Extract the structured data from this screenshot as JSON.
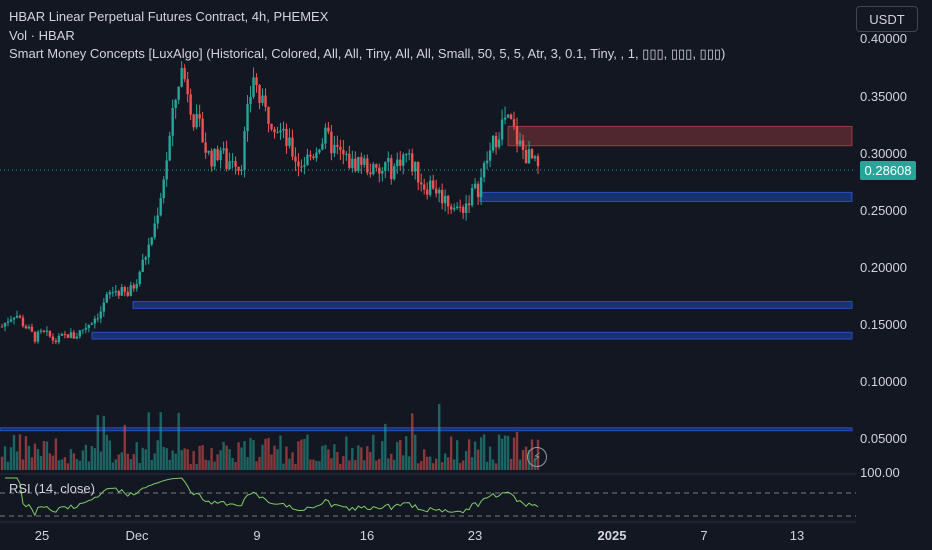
{
  "header": {
    "title": "HBAR Linear Perpetual Futures Contract, 4h, PHEMEX",
    "volume_label": "Vol · HBAR",
    "indicator_label": "Smart Money Concepts [LuxAlgo] (Historical, Colored, All, All, Tiny, All, All, Small, 50, 5, 5, Atr, 3, 0.1, Tiny, , 1, ▯▯▯, ▯▯▯, ▯▯▯)"
  },
  "currency_button": "USDT",
  "current_price": "0.28608",
  "rsi_label": "RSI (14, close)",
  "y_axis_labels": [
    "0.40000",
    "0.35000",
    "0.30000",
    "0.25000",
    "0.20000",
    "0.15000",
    "0.10000",
    "0.05000",
    "100.00"
  ],
  "x_axis_labels": [
    {
      "text": "25",
      "bold": false
    },
    {
      "text": "Dec",
      "bold": false
    },
    {
      "text": "9",
      "bold": false
    },
    {
      "text": "16",
      "bold": false
    },
    {
      "text": "23",
      "bold": false
    },
    {
      "text": "2025",
      "bold": true
    },
    {
      "text": "7",
      "bold": false
    },
    {
      "text": "13",
      "bold": false
    }
  ],
  "colors": {
    "background": "#131722",
    "up": "#26a69a",
    "down": "#ef5350",
    "supply_zone": "#5c2a33",
    "demand_zone": "#1e3a6e",
    "rsi_line": "#7ecb6a"
  },
  "icons": {
    "flash": "lightning-icon"
  },
  "chart_data": {
    "type": "candlestick",
    "title": "HBAR Linear Perpetual Futures Contract, 4h, PHEMEX",
    "ylim": [
      0.03,
      0.41
    ],
    "x_categories": [
      "25",
      "Dec",
      "9",
      "16",
      "23",
      "2025",
      "7",
      "13"
    ],
    "close_series": [
      0.148,
      0.155,
      0.16,
      0.152,
      0.145,
      0.138,
      0.142,
      0.14,
      0.135,
      0.138,
      0.141,
      0.139,
      0.145,
      0.15,
      0.156,
      0.162,
      0.175,
      0.18,
      0.178,
      0.176,
      0.185,
      0.2,
      0.215,
      0.235,
      0.265,
      0.3,
      0.34,
      0.375,
      0.36,
      0.33,
      0.32,
      0.3,
      0.295,
      0.305,
      0.29,
      0.3,
      0.285,
      0.33,
      0.37,
      0.345,
      0.335,
      0.33,
      0.32,
      0.31,
      0.3,
      0.29,
      0.295,
      0.3,
      0.31,
      0.315,
      0.305,
      0.3,
      0.295,
      0.29,
      0.295,
      0.29,
      0.285,
      0.28,
      0.29,
      0.285,
      0.295,
      0.3,
      0.29,
      0.28,
      0.27,
      0.275,
      0.265,
      0.26,
      0.255,
      0.25,
      0.255,
      0.265,
      0.27,
      0.29,
      0.305,
      0.32,
      0.33,
      0.325,
      0.31,
      0.3,
      0.295,
      0.286
    ],
    "zones": [
      {
        "type": "supply",
        "from": 0.307,
        "to": 0.324
      },
      {
        "type": "demand",
        "from": 0.258,
        "to": 0.266
      },
      {
        "type": "demand",
        "from": 0.164,
        "to": 0.17
      },
      {
        "type": "demand",
        "from": 0.137,
        "to": 0.143
      },
      {
        "type": "demand",
        "from": 0.057,
        "to": 0.059
      }
    ],
    "volume_label": "Vol · HBAR",
    "rsi": {
      "period": 14,
      "levels": [
        70,
        30
      ]
    }
  }
}
